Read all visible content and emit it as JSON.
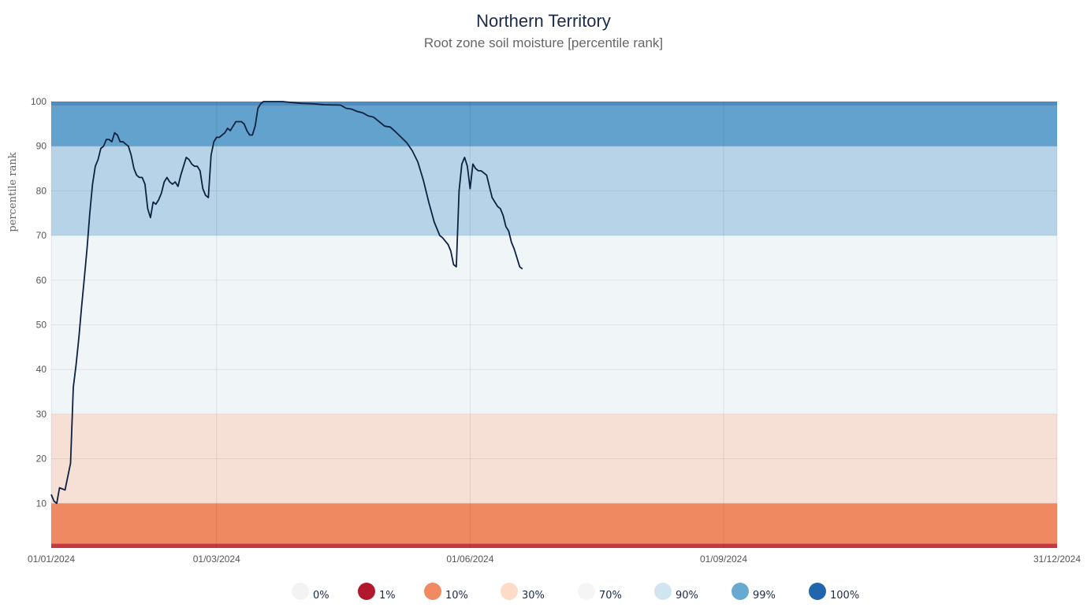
{
  "chart_data": {
    "type": "line",
    "title": "Northern Territory",
    "subtitle": "Root zone soil moisture [percentile rank]",
    "ylabel": "percentile rank",
    "xlabel": "",
    "ylim": [
      0,
      100
    ],
    "xlim": [
      "01/01/2024",
      "31/12/2024"
    ],
    "grid": true,
    "x_ticks": [
      "01/01/2024",
      "01/03/2024",
      "01/06/2024",
      "01/09/2024",
      "31/12/2024"
    ],
    "y_ticks": [
      10,
      20,
      30,
      40,
      50,
      60,
      70,
      80,
      90,
      100
    ],
    "bands": [
      {
        "from": 0,
        "to": 1,
        "color": "#c8393f"
      },
      {
        "from": 1,
        "to": 10,
        "color": "#ef8961"
      },
      {
        "from": 10,
        "to": 30,
        "color": "#f6dfd4"
      },
      {
        "from": 30,
        "to": 70,
        "color": "#f0f5f8"
      },
      {
        "from": 70,
        "to": 90,
        "color": "#b6d3e7"
      },
      {
        "from": 90,
        "to": 99,
        "color": "#62a2cd"
      },
      {
        "from": 99,
        "to": 100,
        "color": "#4f8cc0"
      }
    ],
    "legend_position": "bottom",
    "legend": [
      {
        "label": "0%",
        "color": "#f3f3f3"
      },
      {
        "label": "1%",
        "color": "#b2182b"
      },
      {
        "label": "10%",
        "color": "#ef8a62"
      },
      {
        "label": "30%",
        "color": "#fddbc7"
      },
      {
        "label": "70%",
        "color": "#f5f5f5"
      },
      {
        "label": "90%",
        "color": "#d1e5f0"
      },
      {
        "label": "99%",
        "color": "#67a9cf"
      },
      {
        "label": "100%",
        "color": "#2166ac"
      }
    ],
    "series": [
      {
        "color": "#0d2140",
        "points": [
          [
            "2024-01-01",
            12
          ],
          [
            "2024-01-02",
            10.5
          ],
          [
            "2024-01-03",
            10
          ],
          [
            "2024-01-04",
            13.5
          ],
          [
            "2024-01-06",
            13
          ],
          [
            "2024-01-07",
            16
          ],
          [
            "2024-01-08",
            19
          ],
          [
            "2024-01-09",
            36
          ],
          [
            "2024-01-10",
            41
          ],
          [
            "2024-01-11",
            47
          ],
          [
            "2024-01-12",
            54
          ],
          [
            "2024-01-13",
            60.5
          ],
          [
            "2024-01-14",
            67
          ],
          [
            "2024-01-15",
            75
          ],
          [
            "2024-01-16",
            81.5
          ],
          [
            "2024-01-17",
            85.5
          ],
          [
            "2024-01-18",
            87
          ],
          [
            "2024-01-19",
            89.5
          ],
          [
            "2024-01-20",
            90
          ],
          [
            "2024-01-21",
            91.5
          ],
          [
            "2024-01-22",
            91.5
          ],
          [
            "2024-01-23",
            91
          ],
          [
            "2024-01-24",
            93
          ],
          [
            "2024-01-25",
            92.5
          ],
          [
            "2024-01-26",
            91
          ],
          [
            "2024-01-27",
            91
          ],
          [
            "2024-01-28",
            90.5
          ],
          [
            "2024-01-29",
            90
          ],
          [
            "2024-01-30",
            88
          ],
          [
            "2024-01-31",
            85
          ],
          [
            "2024-02-01",
            83.5
          ],
          [
            "2024-02-02",
            83
          ],
          [
            "2024-02-03",
            83
          ],
          [
            "2024-02-04",
            81.5
          ],
          [
            "2024-02-05",
            76
          ],
          [
            "2024-02-06",
            74
          ],
          [
            "2024-02-07",
            77.5
          ],
          [
            "2024-02-08",
            77
          ],
          [
            "2024-02-09",
            78
          ],
          [
            "2024-02-10",
            79.5
          ],
          [
            "2024-02-11",
            82
          ],
          [
            "2024-02-12",
            83
          ],
          [
            "2024-02-13",
            82
          ],
          [
            "2024-02-14",
            81.5
          ],
          [
            "2024-02-15",
            82
          ],
          [
            "2024-02-16",
            81
          ],
          [
            "2024-02-17",
            83.5
          ],
          [
            "2024-02-18",
            85.5
          ],
          [
            "2024-02-19",
            87.5
          ],
          [
            "2024-02-20",
            87
          ],
          [
            "2024-02-21",
            86
          ],
          [
            "2024-02-22",
            85.5
          ],
          [
            "2024-02-23",
            85.5
          ],
          [
            "2024-02-24",
            84.5
          ],
          [
            "2024-02-25",
            80.5
          ],
          [
            "2024-02-26",
            79
          ],
          [
            "2024-02-27",
            78.5
          ],
          [
            "2024-02-28",
            88
          ],
          [
            "2024-02-29",
            91
          ],
          [
            "2024-03-01",
            92
          ],
          [
            "2024-03-02",
            92
          ],
          [
            "2024-03-03",
            92.5
          ],
          [
            "2024-03-04",
            93
          ],
          [
            "2024-03-05",
            94
          ],
          [
            "2024-03-06",
            93.5
          ],
          [
            "2024-03-07",
            94.5
          ],
          [
            "2024-03-08",
            95.5
          ],
          [
            "2024-03-09",
            95.5
          ],
          [
            "2024-03-10",
            95.5
          ],
          [
            "2024-03-11",
            95
          ],
          [
            "2024-03-12",
            93.5
          ],
          [
            "2024-03-13",
            92.5
          ],
          [
            "2024-03-14",
            92.5
          ],
          [
            "2024-03-15",
            94.5
          ],
          [
            "2024-03-16",
            98.5
          ],
          [
            "2024-03-17",
            99.5
          ],
          [
            "2024-03-18",
            100
          ],
          [
            "2024-03-19",
            100
          ],
          [
            "2024-03-22",
            100
          ],
          [
            "2024-03-25",
            100
          ],
          [
            "2024-03-28",
            99.8
          ],
          [
            "2024-04-01",
            99.6
          ],
          [
            "2024-04-05",
            99.5
          ],
          [
            "2024-04-09",
            99.3
          ],
          [
            "2024-04-15",
            99.2
          ],
          [
            "2024-04-17",
            98.5
          ],
          [
            "2024-04-19",
            98.3
          ],
          [
            "2024-04-21",
            97.8
          ],
          [
            "2024-04-23",
            97.5
          ],
          [
            "2024-04-25",
            96.8
          ],
          [
            "2024-04-27",
            96.5
          ],
          [
            "2024-04-29",
            95.5
          ],
          [
            "2024-05-01",
            94.5
          ],
          [
            "2024-05-03",
            94.3
          ],
          [
            "2024-05-05",
            93.2
          ],
          [
            "2024-05-07",
            92
          ],
          [
            "2024-05-09",
            90.8
          ],
          [
            "2024-05-11",
            89
          ],
          [
            "2024-05-13",
            86.5
          ],
          [
            "2024-05-15",
            82.5
          ],
          [
            "2024-05-17",
            77.5
          ],
          [
            "2024-05-19",
            73
          ],
          [
            "2024-05-21",
            70
          ],
          [
            "2024-05-22",
            69.5
          ],
          [
            "2024-05-24",
            68
          ],
          [
            "2024-05-25",
            66.5
          ],
          [
            "2024-05-26",
            63.5
          ],
          [
            "2024-05-27",
            63
          ],
          [
            "2024-05-28",
            80
          ],
          [
            "2024-05-29",
            86
          ],
          [
            "2024-05-30",
            87.5
          ],
          [
            "2024-05-31",
            85.5
          ],
          [
            "2024-06-01",
            80.5
          ],
          [
            "2024-06-02",
            86
          ],
          [
            "2024-06-03",
            85
          ],
          [
            "2024-06-04",
            84.5
          ],
          [
            "2024-06-05",
            84.5
          ],
          [
            "2024-06-06",
            84
          ],
          [
            "2024-06-07",
            83.5
          ],
          [
            "2024-06-08",
            81
          ],
          [
            "2024-06-09",
            78.5
          ],
          [
            "2024-06-10",
            77.5
          ],
          [
            "2024-06-11",
            76.5
          ],
          [
            "2024-06-12",
            76
          ],
          [
            "2024-06-13",
            74.5
          ],
          [
            "2024-06-14",
            72
          ],
          [
            "2024-06-15",
            71
          ],
          [
            "2024-06-16",
            68.5
          ],
          [
            "2024-06-17",
            67
          ],
          [
            "2024-06-18",
            65
          ],
          [
            "2024-06-19",
            63
          ],
          [
            "2024-06-20",
            62.5
          ]
        ]
      }
    ]
  }
}
